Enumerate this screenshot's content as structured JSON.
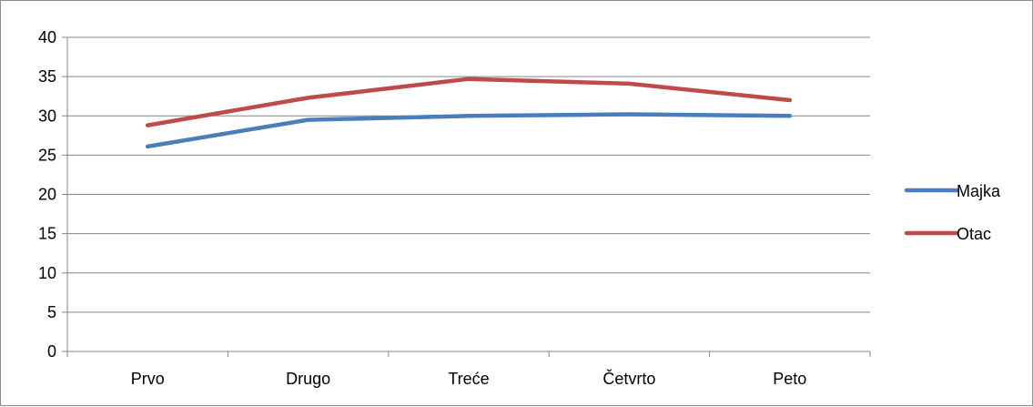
{
  "chart_data": {
    "type": "line",
    "categories": [
      "Prvo",
      "Drugo",
      "Treće",
      "Četvrto",
      "Peto"
    ],
    "series": [
      {
        "name": "Majka",
        "values": [
          26.1,
          29.5,
          30.0,
          30.2,
          30.0
        ],
        "color": "#4a7ebb"
      },
      {
        "name": "Otac",
        "values": [
          28.8,
          32.3,
          34.7,
          34.1,
          32.0
        ],
        "color": "#be4b48"
      }
    ],
    "ylim": [
      0,
      40
    ],
    "yticks": [
      0,
      5,
      10,
      15,
      20,
      25,
      30,
      35,
      40
    ],
    "grid": true,
    "legend": "right",
    "title": "",
    "xlabel": "",
    "ylabel": ""
  }
}
